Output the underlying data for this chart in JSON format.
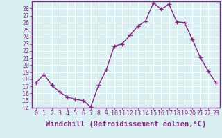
{
  "x": [
    0,
    1,
    2,
    3,
    4,
    5,
    6,
    7,
    8,
    9,
    10,
    11,
    12,
    13,
    14,
    15,
    16,
    17,
    18,
    19,
    20,
    21,
    22,
    23
  ],
  "y": [
    17.5,
    18.7,
    17.2,
    16.2,
    15.5,
    15.2,
    15.0,
    14.1,
    17.2,
    19.4,
    22.7,
    23.0,
    24.2,
    25.5,
    26.2,
    28.8,
    27.9,
    28.6,
    26.1,
    26.0,
    23.6,
    21.1,
    19.2,
    17.5
  ],
  "line_color": "#882288",
  "marker": "+",
  "marker_size": 4,
  "xlabel": "Windchill (Refroidissement éolien,°C)",
  "ylim": [
    14,
    29
  ],
  "xlim": [
    -0.5,
    23.5
  ],
  "yticks": [
    14,
    15,
    16,
    17,
    18,
    19,
    20,
    21,
    22,
    23,
    24,
    25,
    26,
    27,
    28
  ],
  "xticks": [
    0,
    1,
    2,
    3,
    4,
    5,
    6,
    7,
    8,
    9,
    10,
    11,
    12,
    13,
    14,
    15,
    16,
    17,
    18,
    19,
    20,
    21,
    22,
    23
  ],
  "bg_color": "#d8f0f0",
  "grid_color": "#ffffff",
  "line_border_color": "#882288",
  "label_color": "#882288",
  "tick_color": "#882288",
  "xlabel_fontsize": 7.5,
  "tick_fontsize": 6,
  "linewidth": 1.0
}
